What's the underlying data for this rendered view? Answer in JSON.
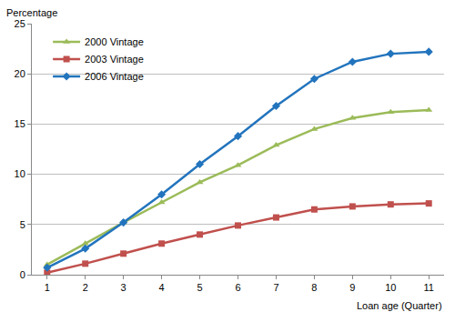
{
  "chart_data": {
    "type": "line",
    "y_label": "Percentage",
    "x_label": "Loan age (Quarter)",
    "x": [
      1,
      2,
      3,
      4,
      5,
      6,
      7,
      8,
      9,
      10,
      11
    ],
    "xlim": [
      0.6,
      11.4
    ],
    "xticks": [
      1,
      2,
      3,
      4,
      5,
      6,
      7,
      8,
      9,
      10,
      11
    ],
    "ylim": [
      0,
      25
    ],
    "yticks": [
      0,
      5,
      10,
      15,
      20,
      25
    ],
    "grid": true,
    "legend": "upper left",
    "series": [
      {
        "name": "2000 Vintage",
        "color": "#9bbb59",
        "marker": "triangle-up",
        "values": [
          1.0,
          3.1,
          5.2,
          7.2,
          9.2,
          10.9,
          12.9,
          14.5,
          15.6,
          16.2,
          16.4
        ]
      },
      {
        "name": "2003 Vintage",
        "color": "#c0504d",
        "marker": "square",
        "values": [
          0.2,
          1.1,
          2.1,
          3.1,
          4.0,
          4.9,
          5.7,
          6.5,
          6.8,
          7.0,
          7.1
        ]
      },
      {
        "name": "2006 Vintage",
        "color": "#2274bd",
        "marker": "diamond",
        "values": [
          0.7,
          2.6,
          5.2,
          8.0,
          11.0,
          13.8,
          16.8,
          19.5,
          21.2,
          22.0,
          22.2
        ]
      }
    ]
  }
}
